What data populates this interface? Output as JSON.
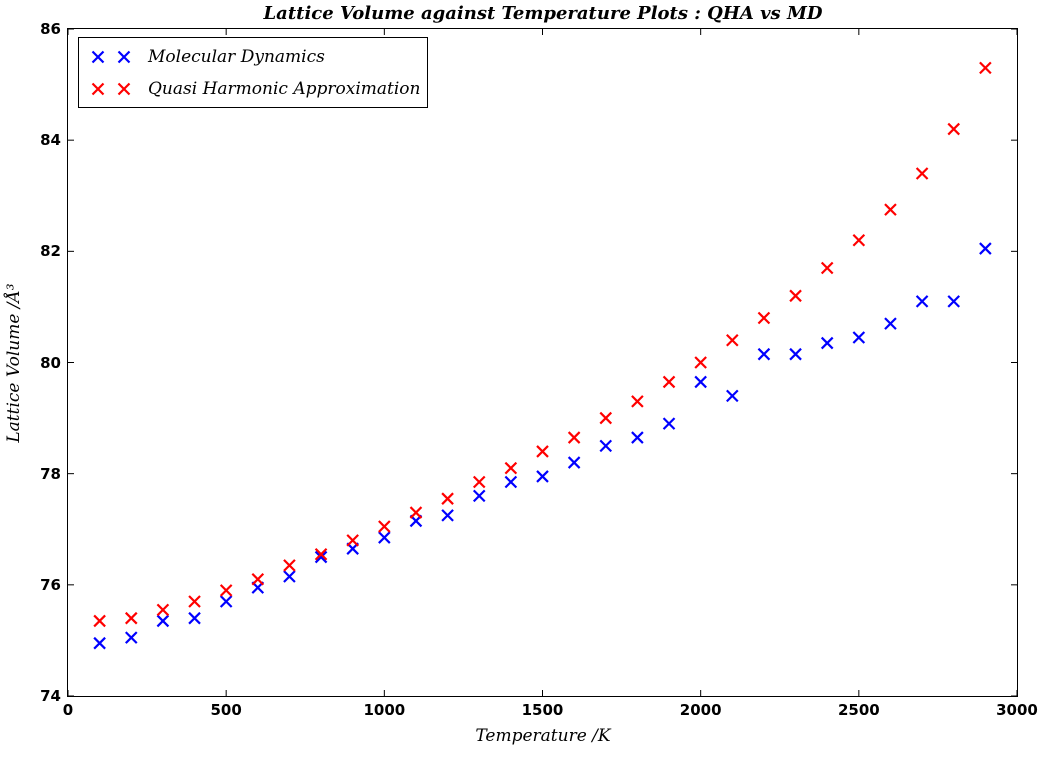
{
  "chart_data": {
    "type": "scatter",
    "title": "Lattice Volume against Temperature Plots : QHA vs MD",
    "xlabel": "Temperature /K",
    "ylabel": "Lattice Volume /Å³",
    "xlim": [
      0,
      3000
    ],
    "ylim": [
      74,
      86
    ],
    "x_ticks": [
      0,
      500,
      1000,
      1500,
      2000,
      2500,
      3000
    ],
    "y_ticks": [
      74,
      76,
      78,
      80,
      82,
      84,
      86
    ],
    "grid": false,
    "legend_position": "upper left",
    "marker": "x",
    "axis_color": "#000000",
    "x": [
      100,
      200,
      300,
      400,
      500,
      600,
      700,
      800,
      900,
      1000,
      1100,
      1200,
      1300,
      1400,
      1500,
      1600,
      1700,
      1800,
      1900,
      2000,
      2100,
      2200,
      2300,
      2400,
      2500,
      2600,
      2700,
      2800,
      2900
    ],
    "series": [
      {
        "id": "md",
        "name": "Molecular Dynamics",
        "color": "#0000ff",
        "values": [
          74.95,
          75.05,
          75.35,
          75.4,
          75.7,
          75.95,
          76.15,
          76.5,
          76.65,
          76.85,
          77.15,
          77.25,
          77.6,
          77.85,
          77.95,
          78.2,
          78.5,
          78.65,
          78.9,
          79.65,
          79.4,
          80.15,
          80.15,
          80.35,
          80.45,
          80.7,
          81.1,
          81.1,
          82.05
        ]
      },
      {
        "id": "qha",
        "name": "Quasi Harmonic Approximation",
        "color": "#ff0000",
        "values": [
          75.35,
          75.4,
          75.55,
          75.7,
          75.9,
          76.1,
          76.35,
          76.55,
          76.8,
          77.05,
          77.3,
          77.55,
          77.85,
          78.1,
          78.4,
          78.65,
          79.0,
          79.3,
          79.65,
          80.0,
          80.4,
          80.8,
          81.2,
          81.7,
          82.2,
          82.75,
          83.4,
          84.2,
          85.3
        ]
      }
    ]
  }
}
